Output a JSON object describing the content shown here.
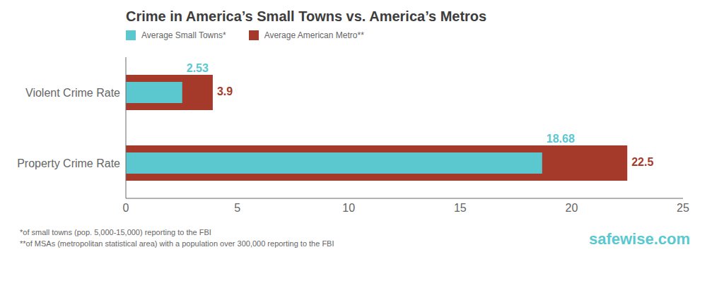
{
  "chart_data": {
    "type": "bar",
    "orientation": "horizontal",
    "title": "Crime in America’s Small Towns vs. America’s Metros",
    "categories": [
      "Violent Crime Rate",
      "Property Crime Rate"
    ],
    "series": [
      {
        "name": "Average Small Towns*",
        "color": "#5bc8d0",
        "values": [
          2.53,
          18.68
        ]
      },
      {
        "name": "Average American Metro**",
        "color": "#a63a2a",
        "values": [
          3.9,
          22.5
        ]
      }
    ],
    "xlim": [
      0,
      25
    ],
    "xticks": [
      0,
      5,
      10,
      15,
      20,
      25
    ],
    "grid": false,
    "legend": "top",
    "data_labels": true,
    "annotations": [
      "*of small towns (pop. 5,000-15,000) reporting to the FBI",
      "**of MSAs (metropolitan statistical area) with a population over 300,000 reporting to the FBI",
      "safewise.com"
    ]
  }
}
